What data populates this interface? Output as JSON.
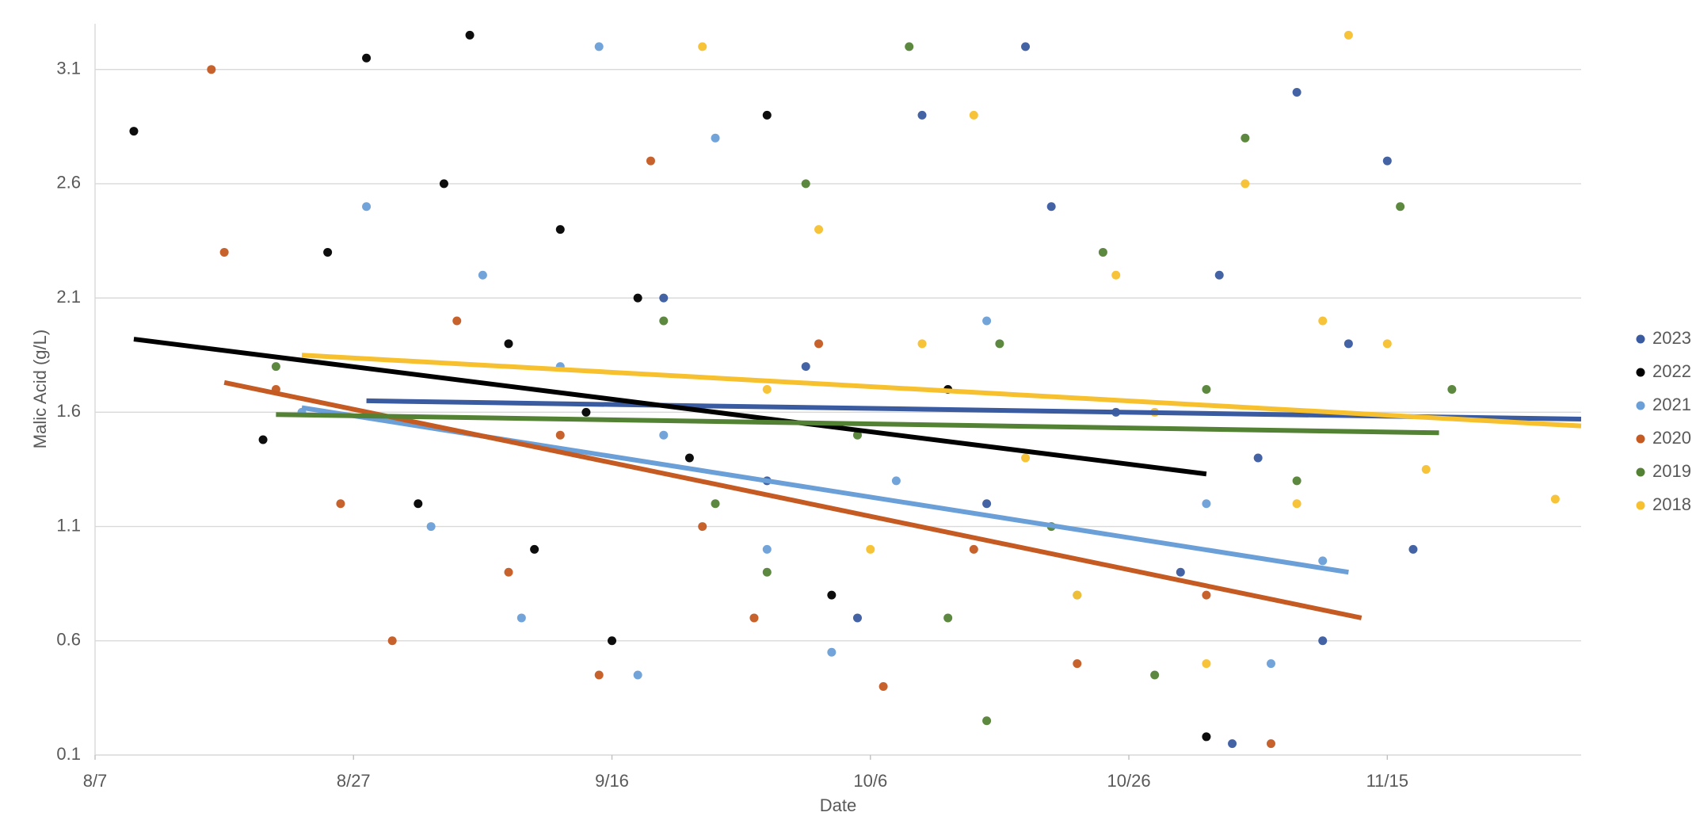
{
  "chart_data": {
    "type": "scatter",
    "x_label": "Date",
    "y_label": "Malic Acid (g/L)",
    "xlim": [
      "8/7",
      "11/30"
    ],
    "xticks": [
      "8/7",
      "8/27",
      "9/16",
      "10/6",
      "10/26",
      "11/15"
    ],
    "ylim": [
      0.1,
      3.3
    ],
    "yticks": [
      0.1,
      0.6,
      1.1,
      1.6,
      2.1,
      2.6,
      3.1
    ],
    "grid": true,
    "legend": "right",
    "series": [
      {
        "name": "2023",
        "color": "#3a5ba0",
        "x": [
          "9/20",
          "10/1",
          "10/10",
          "10/15",
          "10/20",
          "10/25",
          "10/30",
          "11/2",
          "11/5",
          "11/8",
          "11/10",
          "11/12",
          "11/15",
          "11/17",
          "10/5",
          "10/18",
          "9/28",
          "11/3"
        ],
        "values": [
          2.1,
          1.8,
          2.9,
          1.2,
          2.5,
          1.6,
          0.9,
          2.2,
          1.4,
          3.0,
          0.6,
          1.9,
          2.7,
          1.0,
          0.7,
          3.2,
          1.3,
          0.15
        ],
        "trend": {
          "x": [
            "8/28",
            "11/30"
          ],
          "y": [
            1.65,
            1.57
          ]
        }
      },
      {
        "name": "2022",
        "color": "#000000",
        "x": [
          "8/10",
          "8/20",
          "8/25",
          "8/28",
          "9/1",
          "9/3",
          "9/5",
          "9/8",
          "9/10",
          "9/12",
          "9/14",
          "9/16",
          "9/18",
          "9/22",
          "9/28",
          "10/3",
          "10/12",
          "11/1"
        ],
        "values": [
          2.83,
          1.48,
          2.3,
          3.15,
          1.2,
          2.6,
          3.25,
          1.9,
          1.0,
          2.4,
          1.6,
          0.6,
          2.1,
          1.4,
          2.9,
          0.8,
          1.7,
          0.18
        ],
        "trend": {
          "x": [
            "8/10",
            "11/1"
          ],
          "y": [
            1.92,
            1.33
          ]
        }
      },
      {
        "name": "2021",
        "color": "#6a9fd8",
        "x": [
          "8/23",
          "8/28",
          "9/2",
          "9/6",
          "9/9",
          "9/12",
          "9/15",
          "9/18",
          "9/20",
          "9/24",
          "9/28",
          "10/3",
          "10/8",
          "10/15",
          "10/22",
          "11/1",
          "11/6",
          "11/10"
        ],
        "values": [
          1.6,
          2.5,
          1.1,
          2.2,
          0.7,
          1.8,
          3.2,
          0.45,
          1.5,
          2.8,
          1.0,
          0.55,
          1.3,
          2.0,
          0.8,
          1.2,
          0.5,
          0.95
        ],
        "trend": {
          "x": [
            "8/23",
            "11/12"
          ],
          "y": [
            1.62,
            0.9
          ]
        }
      },
      {
        "name": "2020",
        "color": "#c55a22",
        "x": [
          "8/16",
          "8/17",
          "8/21",
          "8/26",
          "8/30",
          "9/4",
          "9/8",
          "9/12",
          "9/15",
          "9/19",
          "9/23",
          "9/27",
          "10/2",
          "10/7",
          "10/14",
          "10/22",
          "11/1",
          "11/6"
        ],
        "values": [
          3.1,
          2.3,
          1.7,
          1.2,
          0.6,
          2.0,
          0.9,
          1.5,
          0.45,
          2.7,
          1.1,
          0.7,
          1.9,
          0.4,
          1.0,
          0.5,
          0.8,
          0.15
        ],
        "trend": {
          "x": [
            "8/17",
            "11/13"
          ],
          "y": [
            1.73,
            0.7
          ]
        }
      },
      {
        "name": "2019",
        "color": "#548235",
        "x": [
          "8/21",
          "9/20",
          "9/24",
          "9/28",
          "10/1",
          "10/5",
          "10/9",
          "10/12",
          "10/16",
          "10/20",
          "10/24",
          "10/28",
          "11/1",
          "11/4",
          "11/8",
          "11/16",
          "11/20",
          "10/15"
        ],
        "values": [
          1.8,
          2.0,
          1.2,
          0.9,
          2.6,
          1.5,
          3.2,
          0.7,
          1.9,
          1.1,
          2.3,
          0.45,
          1.7,
          2.8,
          1.3,
          2.5,
          1.7,
          0.25
        ],
        "trend": {
          "x": [
            "8/21",
            "11/19"
          ],
          "y": [
            1.59,
            1.51
          ]
        }
      },
      {
        "name": "2018",
        "color": "#f6c02e",
        "x": [
          "9/23",
          "9/28",
          "10/2",
          "10/6",
          "10/10",
          "10/14",
          "10/18",
          "10/22",
          "10/25",
          "10/28",
          "11/1",
          "11/4",
          "11/8",
          "11/12",
          "11/15",
          "11/18",
          "11/28",
          "11/10"
        ],
        "values": [
          3.2,
          1.7,
          2.4,
          1.0,
          1.9,
          2.9,
          1.4,
          0.8,
          2.2,
          1.6,
          0.5,
          2.6,
          1.2,
          3.25,
          1.9,
          1.35,
          1.22,
          2.0
        ],
        "trend": {
          "x": [
            "8/23",
            "11/30"
          ],
          "y": [
            1.85,
            1.54
          ]
        }
      }
    ]
  }
}
